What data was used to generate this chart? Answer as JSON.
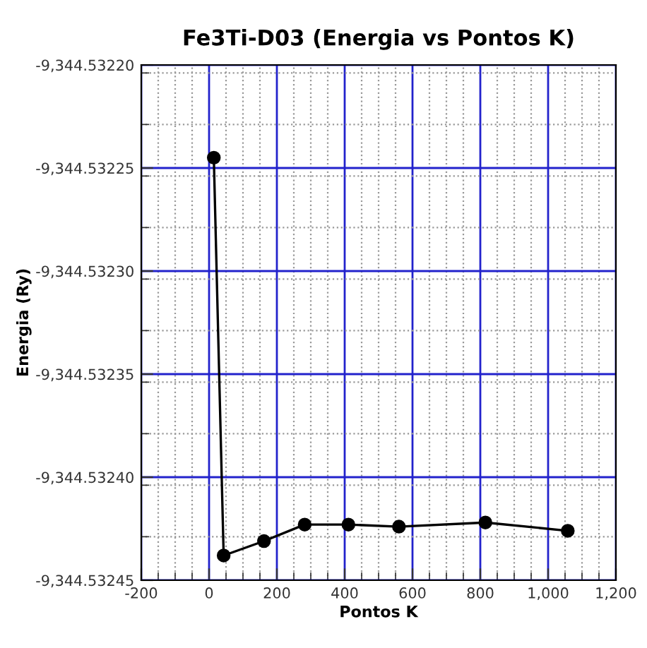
{
  "chart_data": {
    "type": "line",
    "title": "Fe3Ti-D03 (Energia vs Pontos K)",
    "xlabel": "Pontos K",
    "ylabel": "Energia (Ry)",
    "x": [
      14,
      43,
      162,
      282,
      411,
      560,
      815,
      1058
    ],
    "series": [
      {
        "color": "#000000",
        "values": [
          -9344.532245,
          -9344.532438,
          -9344.532431,
          -9344.532423,
          -9344.532423,
          -9344.532424,
          -9344.532422,
          -9344.532426
        ]
      }
    ],
    "xlim": [
      -200,
      1200
    ],
    "xticks": [
      -200,
      0,
      200,
      400,
      600,
      800,
      {
        "value": 1000,
        "label": "1,000"
      },
      {
        "value": 1200,
        "label": "1,200"
      }
    ],
    "ylim": [
      -9344.53245,
      -9344.5322
    ],
    "yticks": [
      {
        "value": -9344.53245,
        "label": "-9,344.53245"
      },
      {
        "value": -9344.5324,
        "label": "-9,344.53240"
      },
      {
        "value": -9344.53235,
        "label": "-9,344.53235"
      },
      {
        "value": -9344.5323,
        "label": "-9,344.53230"
      },
      {
        "value": -9344.53225,
        "label": "-9,344.53225"
      },
      {
        "value": -9344.5322,
        "label": "-9,344.53220"
      }
    ],
    "grid": true,
    "marker": "circle",
    "line_style": "solid"
  }
}
